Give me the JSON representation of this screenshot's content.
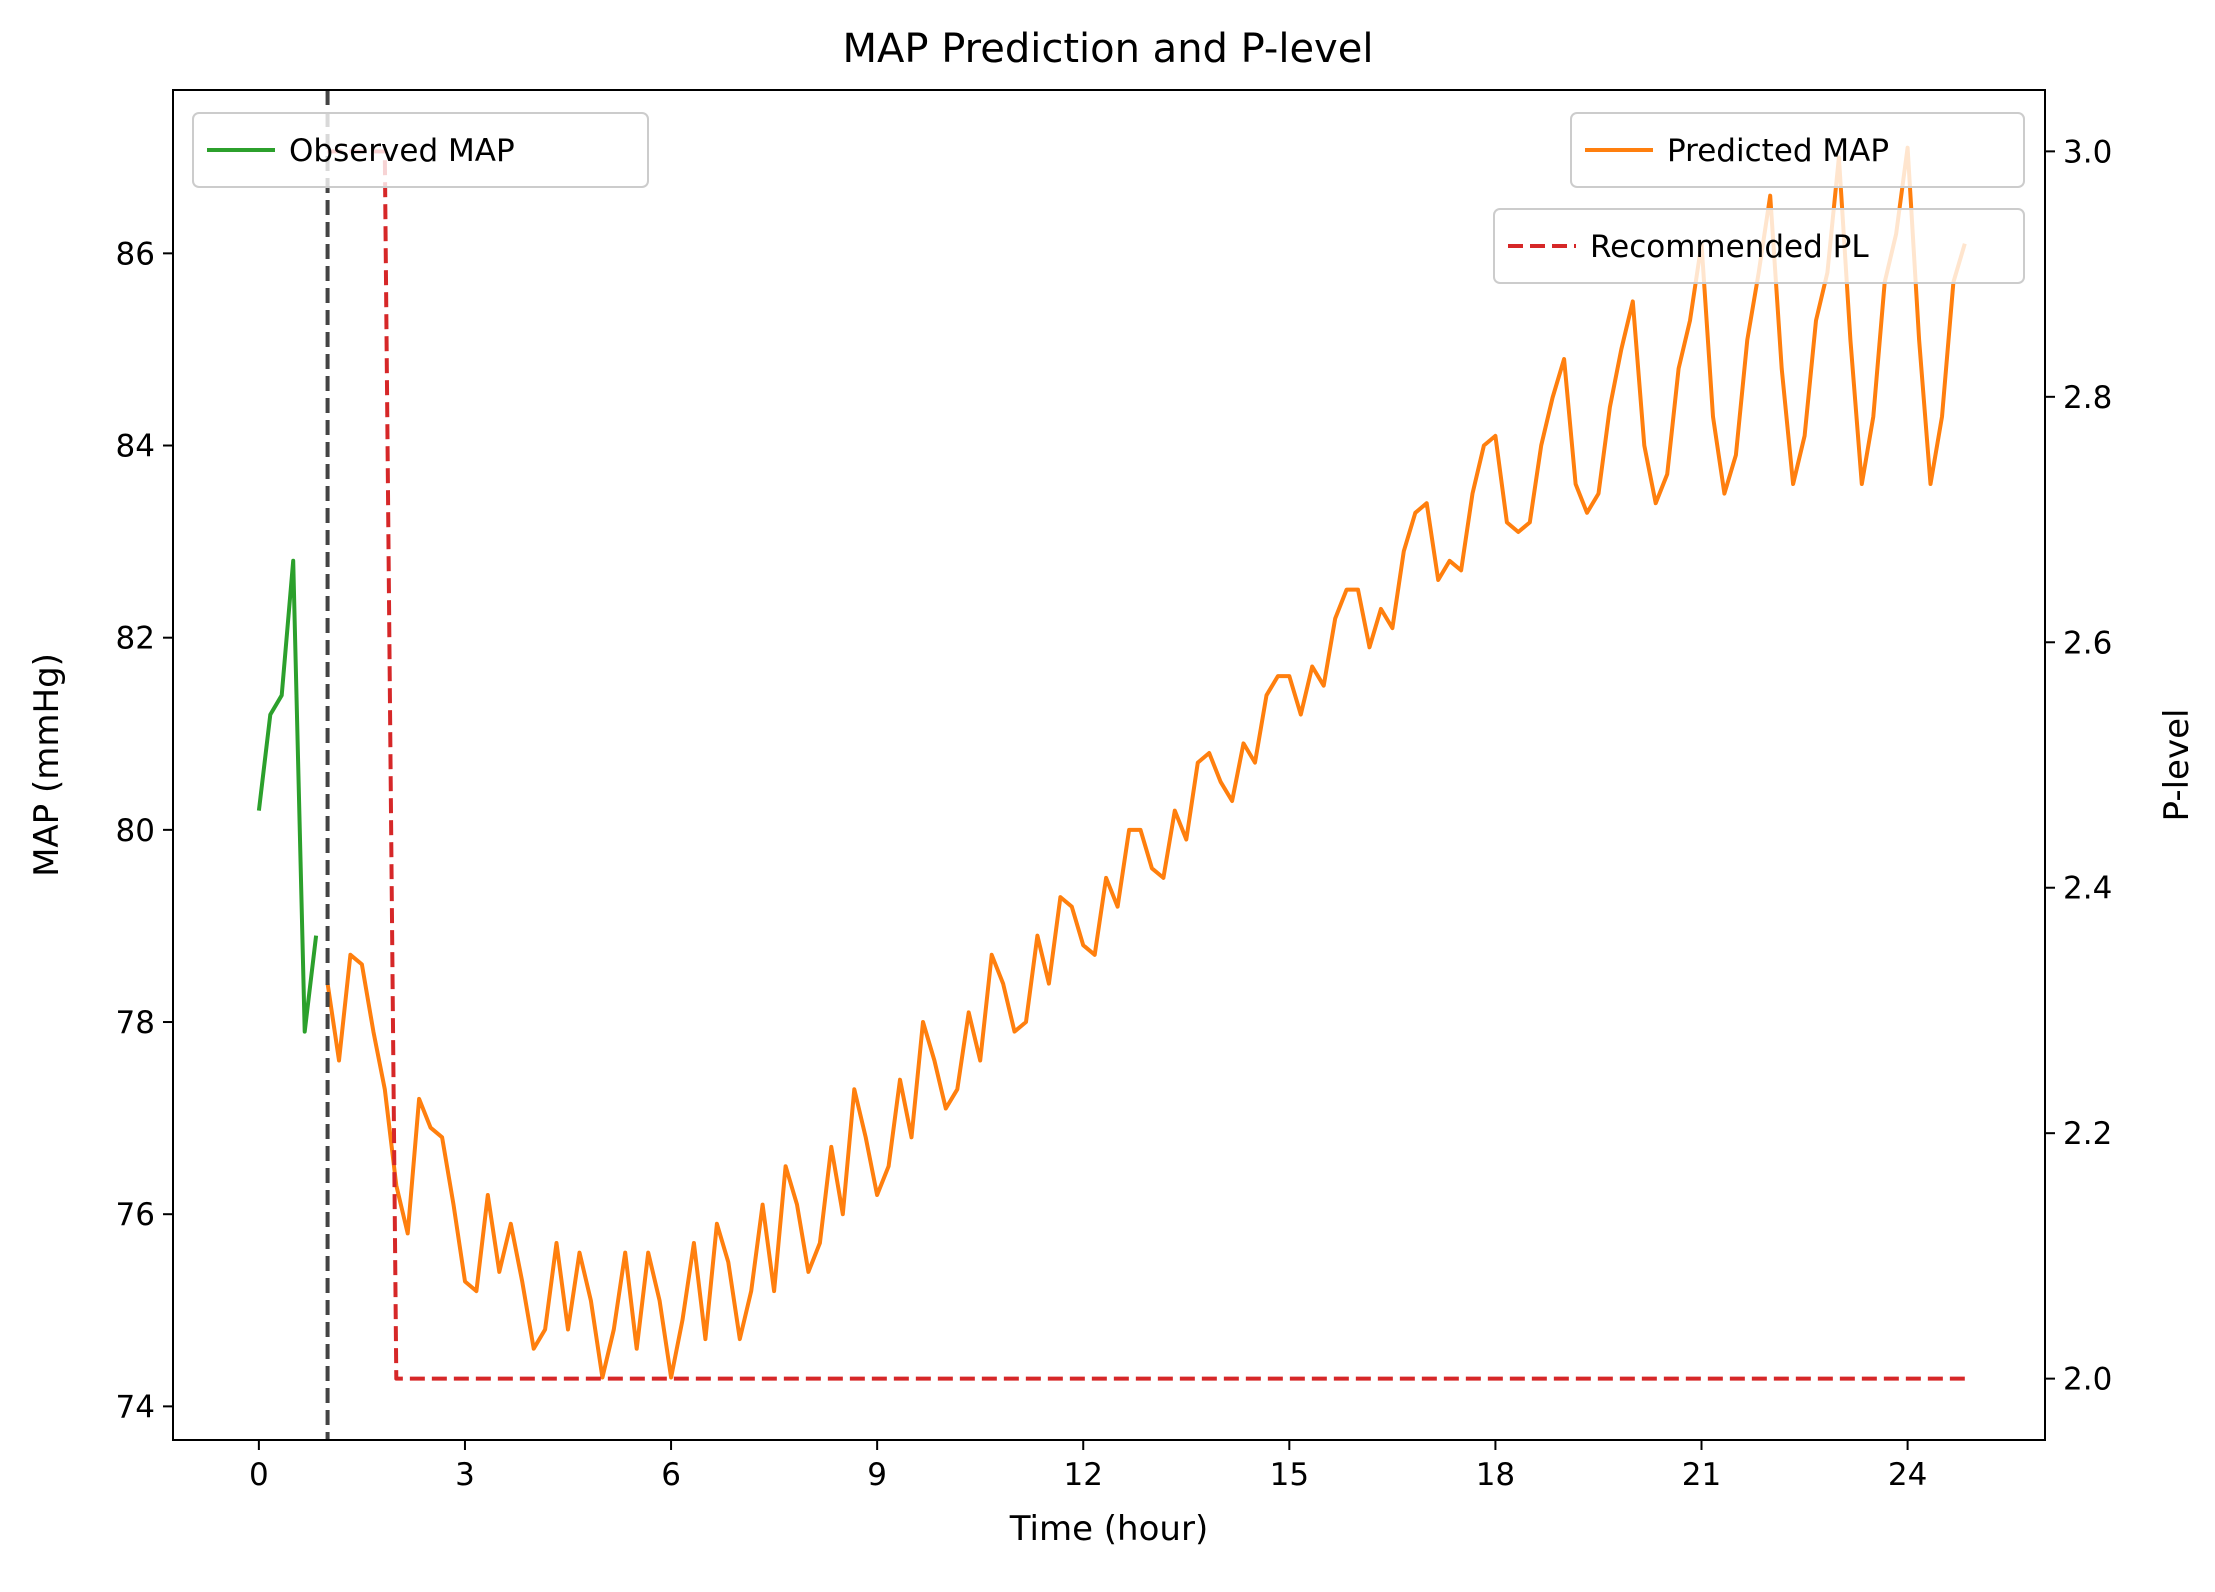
{
  "chart_data": {
    "type": "line",
    "title": "MAP Prediction and P-level",
    "xlabel": "Time (hour)",
    "ylabel": "MAP (mmHg)",
    "y2label": "P-level",
    "xlim": [
      -1.25,
      26.0
    ],
    "ylim": [
      73.65,
      87.7
    ],
    "y2lim": [
      1.95,
      3.05
    ],
    "xticks": [
      0,
      3,
      6,
      9,
      12,
      15,
      18,
      21,
      24
    ],
    "yticks": [
      74,
      76,
      78,
      80,
      82,
      84,
      86
    ],
    "y2ticks": [
      2.0,
      2.2,
      2.4,
      2.6,
      2.8,
      3.0
    ],
    "grid": false,
    "vline": {
      "x": 1.0,
      "color": "#444444",
      "style": "dashed"
    },
    "legends": [
      {
        "placement": "upper-left",
        "entries": [
          "Observed MAP"
        ]
      },
      {
        "placement": "upper-right",
        "entries": [
          "Predicted MAP"
        ]
      },
      {
        "placement": "upper-right-below",
        "entries": [
          "Recommended PL"
        ]
      }
    ],
    "series": [
      {
        "name": "Observed MAP",
        "axis": "left",
        "color": "#2ca02c",
        "style": "solid",
        "x": [
          0.0,
          0.167,
          0.333,
          0.5,
          0.667,
          0.833
        ],
        "y": [
          80.2,
          81.2,
          81.4,
          82.8,
          77.9,
          78.9
        ]
      },
      {
        "name": "Predicted MAP",
        "axis": "left",
        "color": "#ff7f0e",
        "style": "solid",
        "x": [
          1.0,
          1.167,
          1.333,
          1.5,
          1.667,
          1.833,
          2.0,
          2.167,
          2.333,
          2.5,
          2.667,
          2.833,
          3.0,
          3.167,
          3.333,
          3.5,
          3.667,
          3.833,
          4.0,
          4.167,
          4.333,
          4.5,
          4.667,
          4.833,
          5.0,
          5.167,
          5.333,
          5.5,
          5.667,
          5.833,
          6.0,
          6.167,
          6.333,
          6.5,
          6.667,
          6.833,
          7.0,
          7.167,
          7.333,
          7.5,
          7.667,
          7.833,
          8.0,
          8.167,
          8.333,
          8.5,
          8.667,
          8.833,
          9.0,
          9.167,
          9.333,
          9.5,
          9.667,
          9.833,
          10.0,
          10.167,
          10.333,
          10.5,
          10.667,
          10.833,
          11.0,
          11.167,
          11.333,
          11.5,
          11.667,
          11.833,
          12.0,
          12.167,
          12.333,
          12.5,
          12.667,
          12.833,
          13.0,
          13.167,
          13.333,
          13.5,
          13.667,
          13.833,
          14.0,
          14.167,
          14.333,
          14.5,
          14.667,
          14.833,
          15.0,
          15.167,
          15.333,
          15.5,
          15.667,
          15.833,
          16.0,
          16.167,
          16.333,
          16.5,
          16.667,
          16.833,
          17.0,
          17.167,
          17.333,
          17.5,
          17.667,
          17.833,
          18.0,
          18.167,
          18.333,
          18.5,
          18.667,
          18.833,
          19.0,
          19.167,
          19.333,
          19.5,
          19.667,
          19.833,
          20.0,
          20.167,
          20.333,
          20.5,
          20.667,
          20.833,
          21.0,
          21.167,
          21.333,
          21.5,
          21.667,
          21.833,
          22.0,
          22.167,
          22.333,
          22.5,
          22.667,
          22.833,
          23.0,
          23.167,
          23.333,
          23.5,
          23.667,
          23.833,
          24.0,
          24.167,
          24.333,
          24.5,
          24.667,
          24.833
        ],
        "y": [
          78.4,
          77.6,
          78.7,
          78.6,
          77.9,
          77.3,
          76.3,
          75.8,
          77.2,
          76.9,
          76.8,
          76.1,
          75.3,
          75.2,
          76.2,
          75.4,
          75.9,
          75.3,
          74.6,
          74.8,
          75.7,
          74.8,
          75.6,
          75.1,
          74.3,
          74.8,
          75.6,
          74.6,
          75.6,
          75.1,
          74.3,
          74.9,
          75.7,
          74.7,
          75.9,
          75.5,
          74.7,
          75.2,
          76.1,
          75.2,
          76.5,
          76.1,
          75.4,
          75.7,
          76.7,
          76.0,
          77.3,
          76.8,
          76.2,
          76.5,
          77.4,
          76.8,
          78.0,
          77.6,
          77.1,
          77.3,
          78.1,
          77.6,
          78.7,
          78.4,
          77.9,
          78.0,
          78.9,
          78.4,
          79.3,
          79.2,
          78.8,
          78.7,
          79.5,
          79.2,
          80.0,
          80.0,
          79.6,
          79.5,
          80.2,
          79.9,
          80.7,
          80.8,
          80.5,
          80.3,
          80.9,
          80.7,
          81.4,
          81.6,
          81.6,
          81.2,
          81.7,
          81.5,
          82.2,
          82.5,
          82.5,
          81.9,
          82.3,
          82.1,
          82.9,
          83.3,
          83.4,
          82.6,
          82.8,
          82.7,
          83.5,
          84.0,
          84.1,
          83.2,
          83.1,
          83.2,
          84.0,
          84.5,
          84.9,
          83.6,
          83.3,
          83.5,
          84.4,
          85.0,
          85.5,
          84.0,
          83.4,
          83.7,
          84.8,
          85.3,
          86.1,
          84.3,
          83.5,
          83.9,
          85.1,
          85.8,
          86.6,
          84.8,
          83.6,
          84.1,
          85.3,
          85.8,
          87.0,
          85.1,
          83.6,
          84.3,
          85.7,
          86.2,
          87.1,
          85.1,
          83.6,
          84.3,
          85.7,
          86.1
        ]
      },
      {
        "name": "Recommended PL",
        "axis": "right",
        "color": "#d62728",
        "style": "dashed",
        "x": [
          1.0,
          1.833,
          2.0,
          24.833
        ],
        "y": [
          3.0,
          3.0,
          2.0,
          2.0
        ]
      }
    ]
  }
}
